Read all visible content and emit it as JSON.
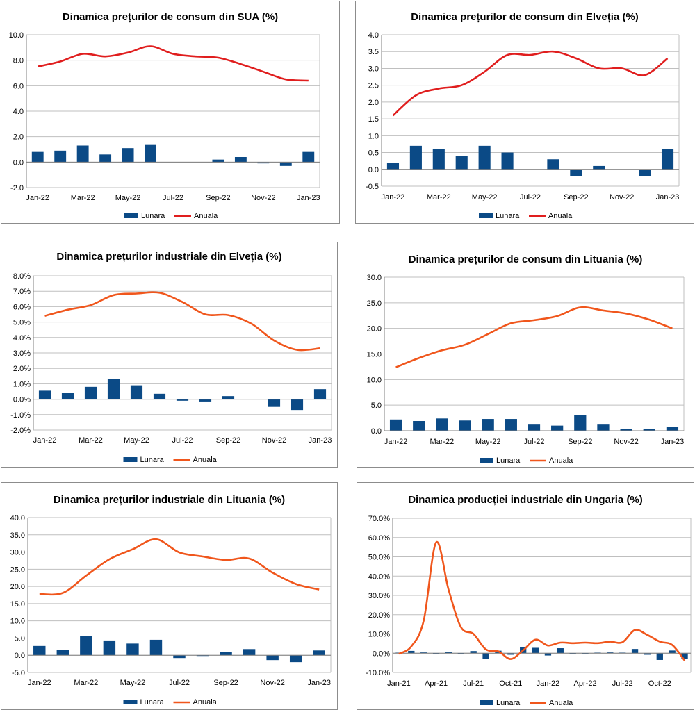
{
  "colors": {
    "bar": "#0b4a86",
    "line_red": "#e01e1e",
    "line_orange": "#f0561c",
    "grid": "#bfbfbf",
    "axis": "#808080"
  },
  "chart_data": [
    {
      "type": "bar+line",
      "title": "Dinamica prețurilor de consum din SUA (%)",
      "legend": {
        "bar": "Lunara",
        "line": "Anuala"
      },
      "categories": [
        "Jan-22",
        "Feb-22",
        "Mar-22",
        "Apr-22",
        "May-22",
        "Jun-22",
        "Jul-22",
        "Aug-22",
        "Sep-22",
        "Oct-22",
        "Nov-22",
        "Dec-22",
        "Jan-23"
      ],
      "x_tick_labels": [
        "Jan-22",
        "",
        "Mar-22",
        "",
        "May-22",
        "",
        "Jul-22",
        "",
        "Sep-22",
        "",
        "Nov-22",
        "",
        "Jan-23"
      ],
      "y_ticks": [
        "10.0",
        "8.0",
        "6.0",
        "4.0",
        "2.0",
        "0.0",
        "-2.0"
      ],
      "ylim": [
        -2,
        10
      ],
      "line_color": "red",
      "series": [
        {
          "name": "Lunara",
          "type": "bar",
          "values": [
            0.8,
            0.9,
            1.3,
            0.6,
            1.1,
            1.4,
            0.0,
            0.0,
            0.2,
            0.4,
            -0.1,
            -0.3,
            0.8
          ]
        },
        {
          "name": "Anuala",
          "type": "line",
          "values": [
            7.5,
            7.9,
            8.5,
            8.3,
            8.6,
            9.1,
            8.5,
            8.3,
            8.2,
            7.7,
            7.1,
            6.5,
            6.4
          ]
        }
      ]
    },
    {
      "type": "bar+line",
      "title": "Dinamica prețurilor de consum din Elveția (%)",
      "legend": {
        "bar": "Lunara",
        "line": "Anuala"
      },
      "categories": [
        "Jan-22",
        "Feb-22",
        "Mar-22",
        "Apr-22",
        "May-22",
        "Jun-22",
        "Jul-22",
        "Aug-22",
        "Sep-22",
        "Oct-22",
        "Nov-22",
        "Dec-22",
        "Jan-23"
      ],
      "x_tick_labels": [
        "Jan-22",
        "",
        "Mar-22",
        "",
        "May-22",
        "",
        "Jul-22",
        "",
        "Sep-22",
        "",
        "Nov-22",
        "",
        "Jan-23"
      ],
      "y_ticks": [
        "4.0",
        "3.5",
        "3.0",
        "2.5",
        "2.0",
        "1.5",
        "1.0",
        "0.5",
        "0.0",
        "-0.5"
      ],
      "ylim": [
        -0.5,
        4
      ],
      "line_color": "red",
      "series": [
        {
          "name": "Lunara",
          "type": "bar",
          "values": [
            0.2,
            0.7,
            0.6,
            0.4,
            0.7,
            0.5,
            0.0,
            0.3,
            -0.2,
            0.1,
            0.0,
            -0.2,
            0.6
          ]
        },
        {
          "name": "Anuala",
          "type": "line",
          "values": [
            1.6,
            2.2,
            2.4,
            2.5,
            2.9,
            3.4,
            3.4,
            3.5,
            3.3,
            3.0,
            3.0,
            2.8,
            3.3
          ]
        }
      ]
    },
    {
      "type": "bar+line",
      "title": "Dinamica prețurilor industriale din Elveția (%)",
      "legend": {
        "bar": "Lunara",
        "line": "Anuala"
      },
      "categories": [
        "Jan-22",
        "Feb-22",
        "Mar-22",
        "Apr-22",
        "May-22",
        "Jun-22",
        "Jul-22",
        "Aug-22",
        "Sep-22",
        "Oct-22",
        "Nov-22",
        "Dec-22",
        "Jan-23"
      ],
      "x_tick_labels": [
        "Jan-22",
        "",
        "Mar-22",
        "",
        "May-22",
        "",
        "Jul-22",
        "",
        "Sep-22",
        "",
        "Nov-22",
        "",
        "Jan-23"
      ],
      "y_ticks": [
        "8.0%",
        "7.0%",
        "6.0%",
        "5.0%",
        "4.0%",
        "3.0%",
        "2.0%",
        "1.0%",
        "0.0%",
        "-1.0%",
        "-2.0%"
      ],
      "ylim": [
        -2,
        8
      ],
      "line_color": "orange",
      "series": [
        {
          "name": "Lunara",
          "type": "bar",
          "values": [
            0.55,
            0.4,
            0.8,
            1.3,
            0.9,
            0.35,
            -0.1,
            -0.15,
            0.2,
            0.0,
            -0.5,
            -0.7,
            0.65
          ]
        },
        {
          "name": "Anuala",
          "type": "line",
          "values": [
            5.4,
            5.8,
            6.1,
            6.75,
            6.85,
            6.9,
            6.3,
            5.5,
            5.45,
            4.9,
            3.8,
            3.2,
            3.3
          ]
        }
      ]
    },
    {
      "type": "bar+line",
      "title": "Dinamica prețurilor de consum din Lituania (%)",
      "legend": {
        "bar": "Lunara",
        "line": "Anuala"
      },
      "categories": [
        "Jan-22",
        "Feb-22",
        "Mar-22",
        "Apr-22",
        "May-22",
        "Jun-22",
        "Jul-22",
        "Aug-22",
        "Sep-22",
        "Oct-22",
        "Nov-22",
        "Dec-22",
        "Jan-23"
      ],
      "x_tick_labels": [
        "Jan-22",
        "",
        "Mar-22",
        "",
        "May-22",
        "",
        "Jul-22",
        "",
        "Sep-22",
        "",
        "Nov-22",
        "",
        "Jan-23"
      ],
      "y_ticks": [
        "30.0",
        "25.0",
        "20.0",
        "15.0",
        "10.0",
        "5.0",
        "0.0"
      ],
      "ylim": [
        0,
        30
      ],
      "line_color": "orange",
      "series": [
        {
          "name": "Lunara",
          "type": "bar",
          "values": [
            2.2,
            1.9,
            2.4,
            2.0,
            2.3,
            2.3,
            1.2,
            1.0,
            3.0,
            1.2,
            0.4,
            0.3,
            0.8
          ]
        },
        {
          "name": "Anuala",
          "type": "line",
          "values": [
            12.4,
            14.2,
            15.7,
            16.8,
            18.9,
            21.0,
            21.6,
            22.4,
            24.1,
            23.5,
            22.9,
            21.7,
            20.0
          ]
        }
      ]
    },
    {
      "type": "bar+line",
      "title": "Dinamica prețurilor industriale din Lituania (%)",
      "legend": {
        "bar": "Lunara",
        "line": "Anuala"
      },
      "categories": [
        "Jan-22",
        "Feb-22",
        "Mar-22",
        "Apr-22",
        "May-22",
        "Jun-22",
        "Jul-22",
        "Aug-22",
        "Sep-22",
        "Oct-22",
        "Nov-22",
        "Dec-22",
        "Jan-23"
      ],
      "x_tick_labels": [
        "Jan-22",
        "",
        "Mar-22",
        "",
        "May-22",
        "",
        "Jul-22",
        "",
        "Sep-22",
        "",
        "Nov-22",
        "",
        "Jan-23"
      ],
      "y_ticks": [
        "40.0",
        "35.0",
        "30.0",
        "25.0",
        "20.0",
        "15.0",
        "10.0",
        "5.0",
        "0.0",
        "-5.0"
      ],
      "ylim": [
        -5,
        40
      ],
      "line_color": "orange",
      "series": [
        {
          "name": "Lunara",
          "type": "bar",
          "values": [
            2.7,
            1.6,
            5.5,
            4.3,
            3.4,
            4.5,
            -0.8,
            -0.2,
            0.9,
            1.8,
            -1.4,
            -2.0,
            1.4
          ]
        },
        {
          "name": "Anuala",
          "type": "line",
          "values": [
            17.8,
            18.1,
            23.1,
            27.9,
            30.8,
            33.7,
            29.9,
            28.7,
            27.7,
            28.1,
            24.0,
            20.7,
            19.1
          ]
        }
      ]
    },
    {
      "type": "bar+line",
      "title": "Dinamica producției industriale din Ungaria (%)",
      "legend": {
        "bar": "Lunara",
        "line": "Anuala"
      },
      "categories": [
        "Jan-21",
        "Feb-21",
        "Mar-21",
        "Apr-21",
        "May-21",
        "Jun-21",
        "Jul-21",
        "Aug-21",
        "Sep-21",
        "Oct-21",
        "Nov-21",
        "Dec-21",
        "Jan-22",
        "Feb-22",
        "Mar-22",
        "Apr-22",
        "May-22",
        "Jun-22",
        "Jul-22",
        "Aug-22",
        "Sep-22",
        "Oct-22",
        "Nov-22",
        "Dec-22"
      ],
      "x_tick_labels": [
        "Jan-21",
        "",
        "",
        "Apr-21",
        "",
        "",
        "Jul-21",
        "",
        "",
        "Oct-21",
        "",
        "",
        "Jan-22",
        "",
        "",
        "Apr-22",
        "",
        "",
        "Jul-22",
        "",
        "",
        "Oct-22",
        "",
        ""
      ],
      "y_ticks": [
        "70.0%",
        "60.0%",
        "50.0%",
        "40.0%",
        "30.0%",
        "20.0%",
        "10.0%",
        "0.0%",
        "-10.0%"
      ],
      "ylim": [
        -10,
        70
      ],
      "line_color": "orange",
      "series": [
        {
          "name": "Lunara",
          "type": "bar",
          "values": [
            0.3,
            1.2,
            0.4,
            -0.6,
            0.8,
            -0.5,
            1.1,
            -3.0,
            1.3,
            -0.8,
            3.0,
            2.8,
            -1.2,
            2.6,
            -0.3,
            -0.5,
            0.3,
            0.4,
            0.3,
            2.2,
            -0.8,
            -3.5,
            1.4,
            -2.8
          ]
        },
        {
          "name": "Anuala",
          "type": "line",
          "values": [
            -0.3,
            3.5,
            17.0,
            57.5,
            33.0,
            13.5,
            10.0,
            2.0,
            1.0,
            -3.0,
            1.5,
            7.0,
            4.0,
            5.5,
            5.2,
            5.5,
            5.2,
            6.0,
            5.7,
            12.0,
            9.5,
            6.0,
            4.3,
            -3.8
          ]
        }
      ]
    }
  ]
}
